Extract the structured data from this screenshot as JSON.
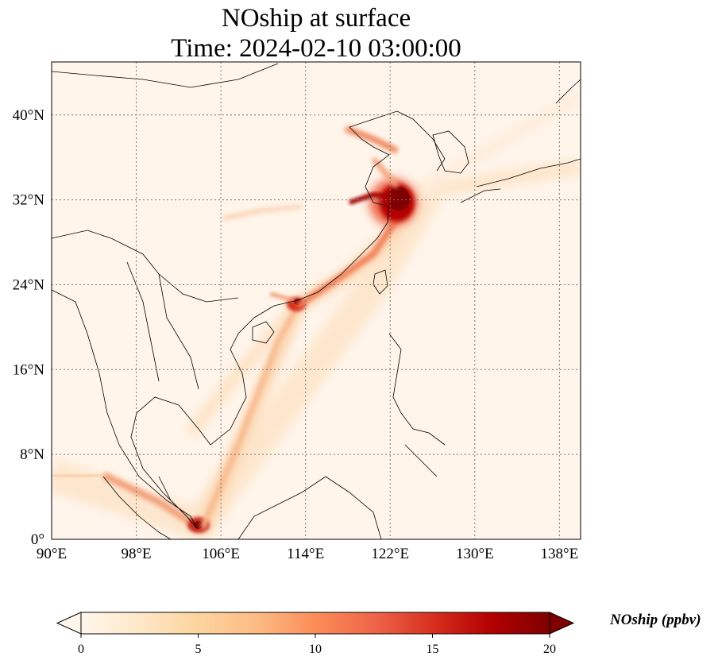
{
  "title": {
    "line1": "NOship at surface",
    "line2": "Time: 2024-02-10 03:00:00"
  },
  "map": {
    "projection": "PlateCarree",
    "lon_range": [
      90,
      140
    ],
    "lat_range": [
      0,
      45
    ],
    "gridlines": "dotted gray",
    "x_tick_labels": [
      "90°E",
      "98°E",
      "106°E",
      "114°E",
      "122°E",
      "130°E",
      "138°E"
    ],
    "y_tick_labels": [
      "0°",
      "8°N",
      "16°N",
      "24°N",
      "32°N",
      "40°N"
    ],
    "x_ticks_deg": [
      90,
      98,
      106,
      114,
      122,
      130,
      138
    ],
    "y_ticks_deg": [
      0,
      8,
      16,
      24,
      32,
      40
    ],
    "background_color": "#fff5eb"
  },
  "colorbar": {
    "label": "NOship (ppbv)",
    "colormap": "OrRd",
    "tick_labels": [
      "0",
      "5",
      "10",
      "15",
      "20"
    ],
    "ticks": [
      0,
      5,
      10,
      15,
      20
    ],
    "range": [
      0,
      20
    ],
    "extend": "both",
    "colors": [
      "#fff7ec",
      "#fee8c8",
      "#fdd49e",
      "#fdbb84",
      "#fc8d59",
      "#ef6548",
      "#d7301f",
      "#b30000",
      "#7f0000"
    ]
  }
}
